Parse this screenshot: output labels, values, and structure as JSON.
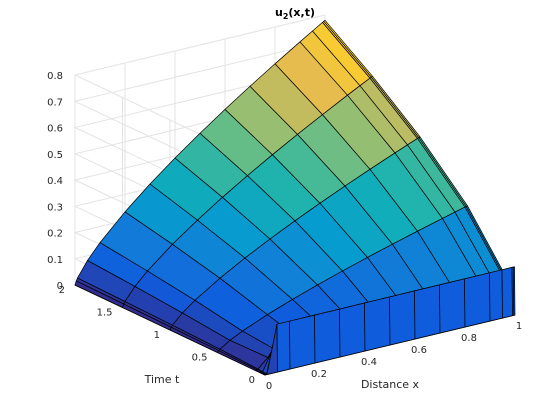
{
  "chart_data": {
    "type": "surface",
    "title": "u",
    "title_subscript": "2",
    "title_suffix": "(x,t)",
    "xlabel": "Distance x",
    "ylabel": "Time t",
    "xlim": [
      0,
      1
    ],
    "ylim": [
      0,
      2
    ],
    "zlim": [
      0,
      0.8
    ],
    "x_ticks": [
      0,
      0.2,
      0.4,
      0.6,
      0.8,
      1
    ],
    "x_tick_labels": [
      "0",
      "0.2",
      "0.4",
      "0.6",
      "0.8",
      "1"
    ],
    "y_ticks": [
      0,
      0.5,
      1,
      1.5,
      2
    ],
    "y_tick_labels": [
      "0",
      "0.5",
      "1",
      "1.5",
      "2"
    ],
    "z_ticks": [
      0,
      0.1,
      0.2,
      0.3,
      0.4,
      0.5,
      0.6,
      0.7,
      0.8
    ],
    "z_tick_labels": [
      "0",
      "0.1",
      "0.2",
      "0.3",
      "0.4",
      "0.5",
      "0.6",
      "0.7",
      "0.8"
    ],
    "grid": true,
    "colormap": "parula",
    "x": [
      0,
      0.005,
      0.01,
      0.05,
      0.1,
      0.2,
      0.3,
      0.4,
      0.5,
      0.6,
      0.7,
      0.8,
      0.9,
      0.95,
      0.99,
      0.995,
      1
    ],
    "t": [
      0,
      0.005,
      0.01,
      0.05,
      0.1,
      0.5,
      1,
      1.5,
      2
    ],
    "peak_value": 0.78
  }
}
